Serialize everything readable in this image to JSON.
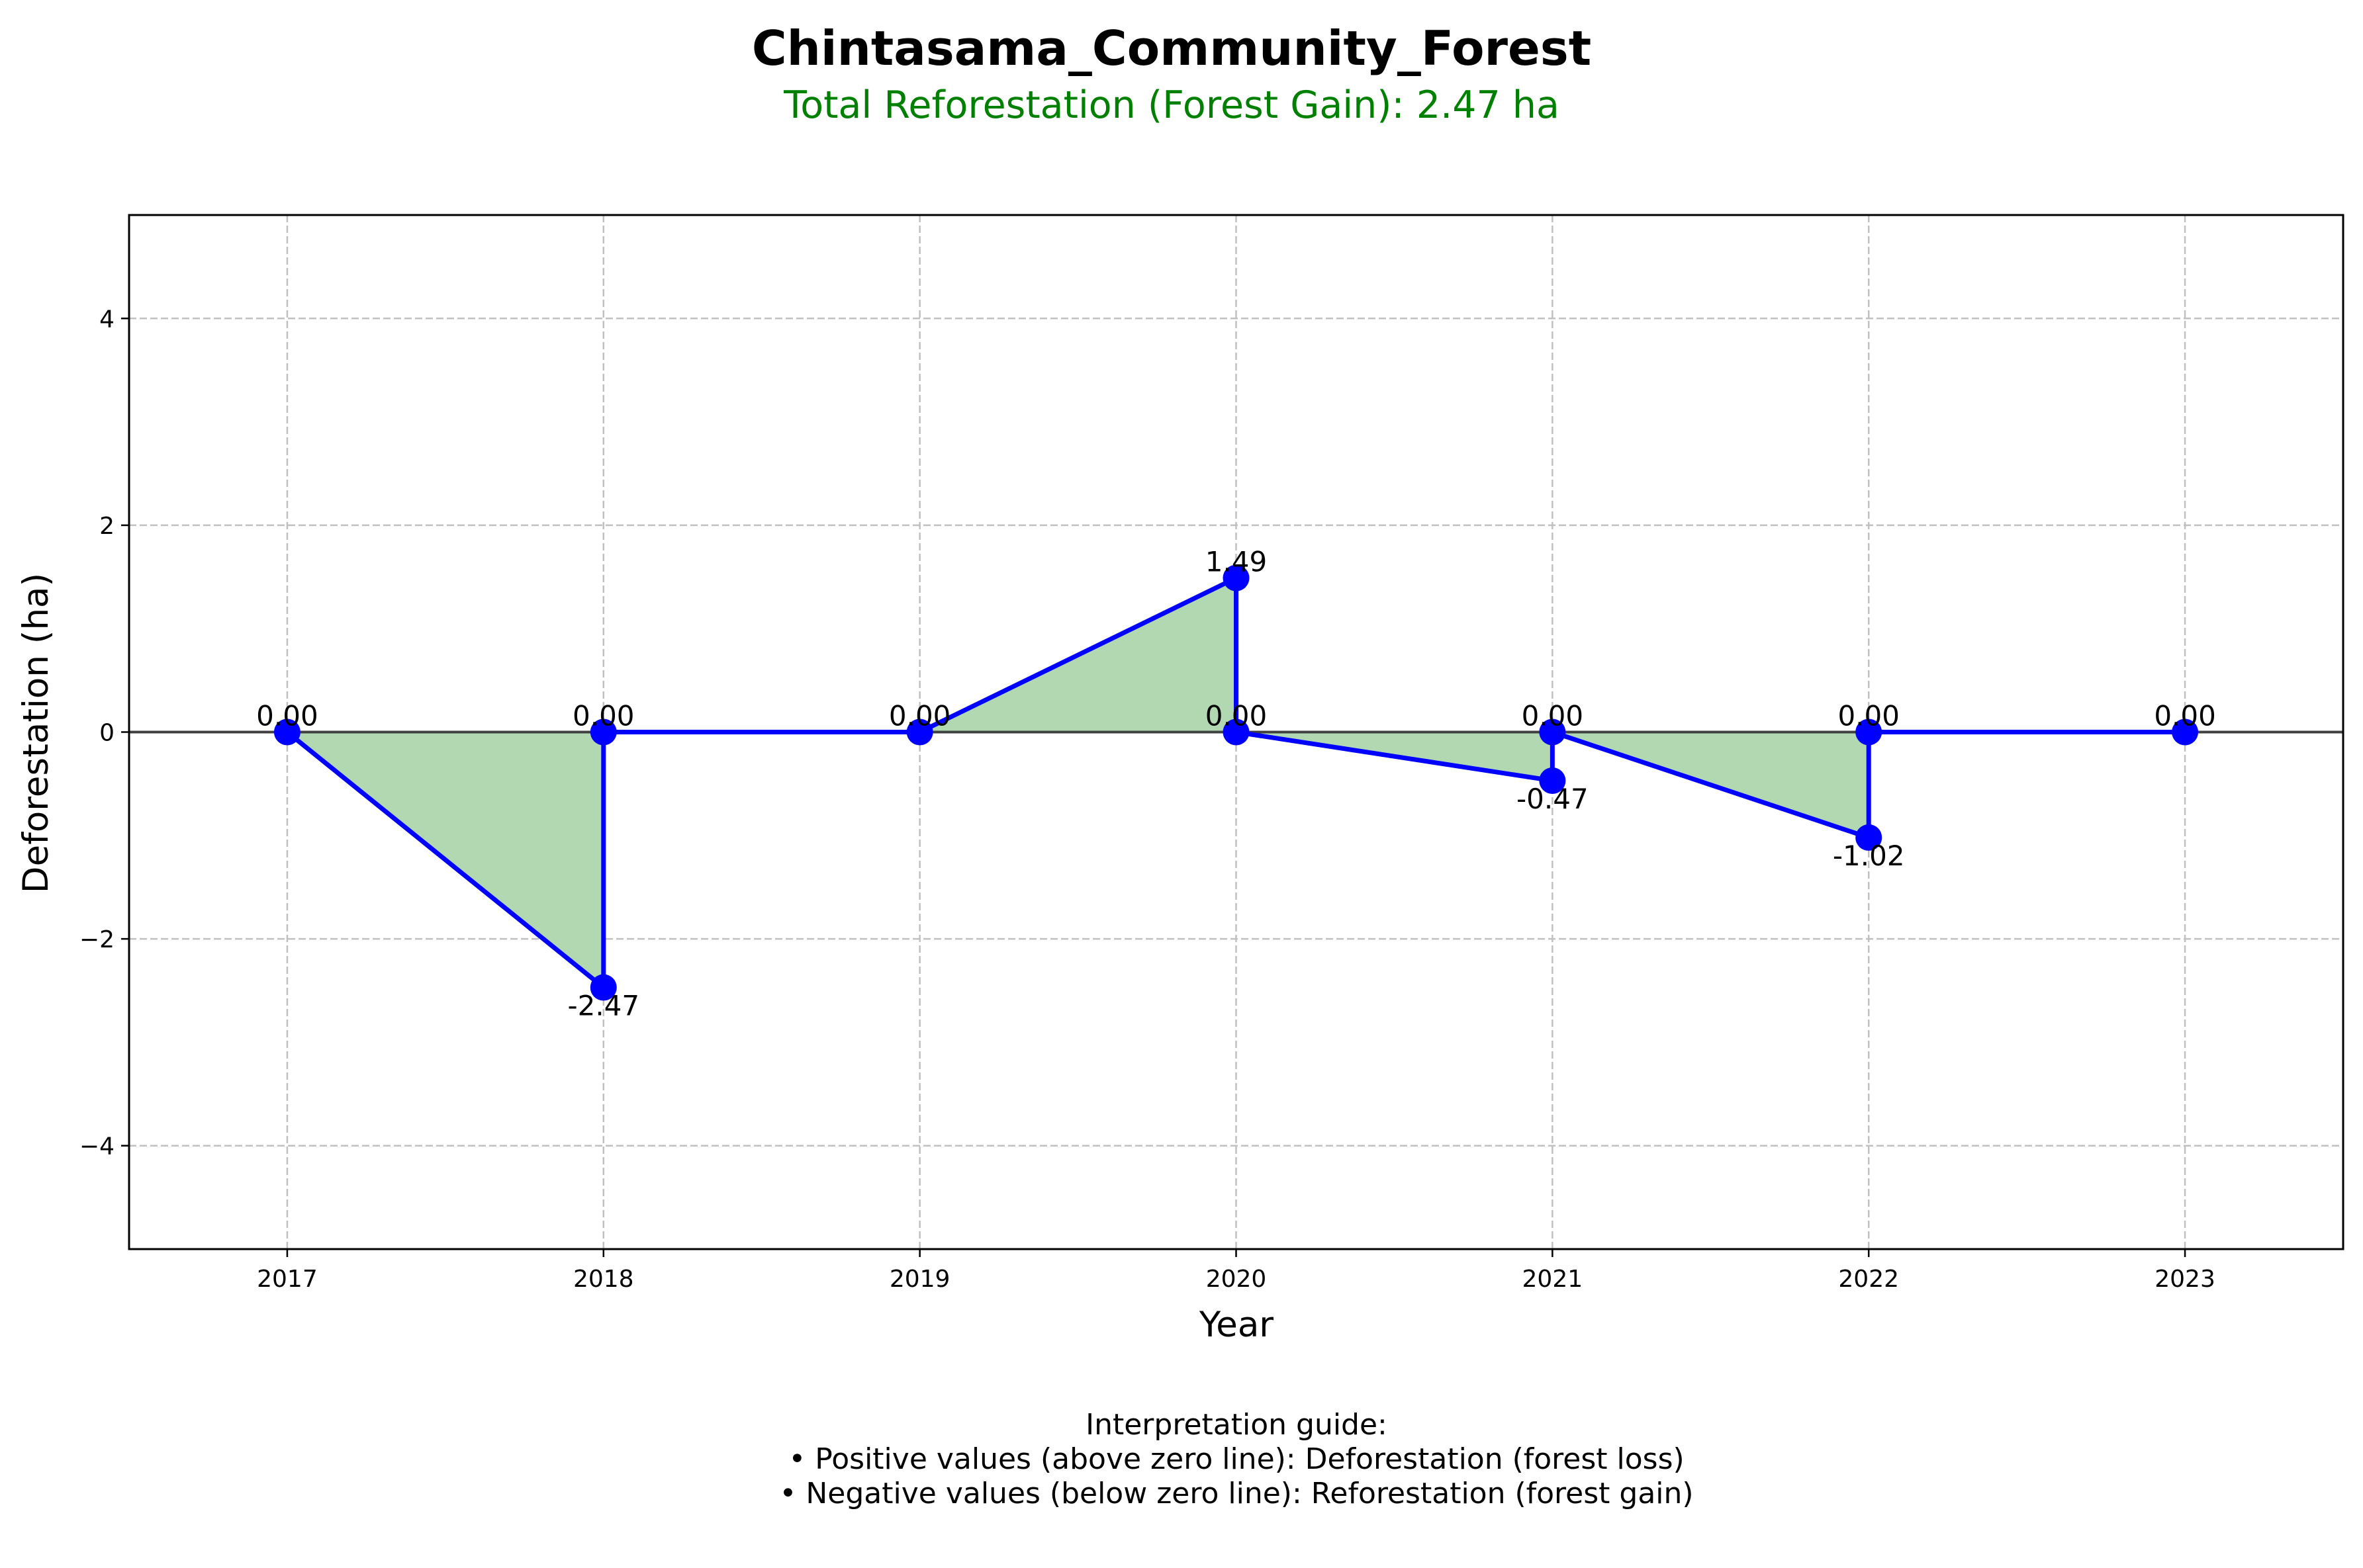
{
  "chart_data": {
    "type": "line",
    "title": "Chintasama_Community_Forest",
    "subtitle": "Total Reforestation (Forest Gain): 2.47 ha",
    "xlabel": "Year",
    "ylabel": "Deforestation (ha)",
    "x_ticks": [
      "2017",
      "2018",
      "2019",
      "2020",
      "2021",
      "2022",
      "2023"
    ],
    "xlim": [
      -0.5,
      6.5
    ],
    "ylim": [
      -5,
      5
    ],
    "y_ticks": [
      -4,
      -2,
      0,
      2,
      4
    ],
    "y_tick_labels": [
      "−4",
      "−2",
      "0",
      "2",
      "4"
    ],
    "grid": true,
    "fill_between_zero": true,
    "points": [
      {
        "x": 0,
        "y": 0.0,
        "label": "0.00",
        "label_position": "above"
      },
      {
        "x": 1,
        "y": -2.47,
        "label": "-2.47",
        "label_position": "below"
      },
      {
        "x": 1,
        "y": 0.0,
        "label": "0.00",
        "label_position": "above"
      },
      {
        "x": 2,
        "y": 0.0,
        "label": "0.00",
        "label_position": "above"
      },
      {
        "x": 3,
        "y": 1.49,
        "label": "1.49",
        "label_position": "above"
      },
      {
        "x": 3,
        "y": 0.0,
        "label": "0.00",
        "label_position": "above"
      },
      {
        "x": 4,
        "y": -0.47,
        "label": "-0.47",
        "label_position": "below"
      },
      {
        "x": 4,
        "y": 0.0,
        "label": "0.00",
        "label_position": "above"
      },
      {
        "x": 5,
        "y": -1.02,
        "label": "-1.02",
        "label_position": "below"
      },
      {
        "x": 5,
        "y": 0.0,
        "label": "0.00",
        "label_position": "above"
      },
      {
        "x": 6,
        "y": 0.0,
        "label": "0.00",
        "label_position": "above"
      }
    ],
    "colors": {
      "line": "#0000ff",
      "marker": "#0000ff",
      "fill": "#b2d8b2",
      "zero_line": "#404040",
      "grid": "#c0c0c0",
      "subtitle": "#008000"
    },
    "interpretation_guide": [
      "Interpretation guide:",
      "• Positive values (above zero line): Deforestation (forest loss)",
      "• Negative values (below zero line): Reforestation (forest gain)"
    ]
  }
}
